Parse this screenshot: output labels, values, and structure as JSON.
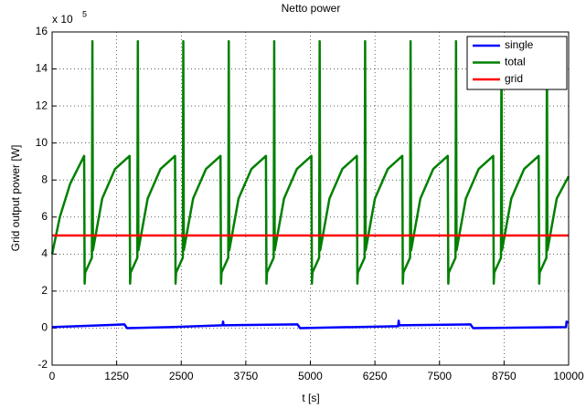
{
  "chart_data": {
    "type": "line",
    "title": "Netto power",
    "x_label": "t [s]",
    "y_label": "Grid output power [W]",
    "y_multiplier": {
      "base": "x 10",
      "exponent": "5"
    },
    "xlim": [
      0,
      10000
    ],
    "ylim": [
      -2,
      16
    ],
    "xticks": [
      0,
      1250,
      2500,
      3750,
      5000,
      6250,
      7500,
      8750,
      10000
    ],
    "yticks": [
      -2,
      0,
      2,
      4,
      6,
      8,
      10,
      12,
      14,
      16
    ],
    "grid": true,
    "legend": "upper right",
    "series": [
      {
        "name": "single",
        "color": "#0000ff",
        "x": [
          0,
          1400,
          1450,
          2300,
          3300,
          3310,
          3320,
          4750,
          4800,
          6700,
          6710,
          6720,
          8100,
          8150,
          9950,
          9960,
          10000
        ],
        "values": [
          0.05,
          0.2,
          0,
          0.05,
          0.15,
          0.35,
          0.15,
          0.2,
          0,
          0.1,
          0.4,
          0.15,
          0.2,
          0,
          0.05,
          0.35,
          0.3
        ]
      },
      {
        "name": "total",
        "color": "#008000",
        "x": [
          0,
          150,
          350,
          620,
          630,
          640,
          770,
          780,
          790,
          970,
          1220,
          1500,
          1510,
          1520,
          1650,
          1660,
          1670,
          1850,
          2100,
          2380,
          2390,
          2400,
          2530,
          2540,
          2550,
          2730,
          2980,
          3260,
          3270,
          3280,
          3410,
          3420,
          3430,
          3610,
          3860,
          4140,
          4150,
          4160,
          4290,
          4300,
          4310,
          4490,
          4740,
          5020,
          5030,
          5040,
          5170,
          5180,
          5190,
          5370,
          5620,
          5900,
          5910,
          5920,
          6050,
          6060,
          6070,
          6250,
          6500,
          6780,
          6790,
          6800,
          6930,
          6940,
          6950,
          7130,
          7380,
          7660,
          7670,
          7680,
          7810,
          7820,
          7830,
          8010,
          8260,
          8540,
          8550,
          8560,
          8690,
          8700,
          8710,
          8890,
          9140,
          9420,
          9430,
          9440,
          9570,
          9580,
          9590,
          9770,
          10000
        ],
        "values": [
          4.0,
          6.0,
          7.8,
          9.3,
          2.4,
          3.0,
          3.8,
          15.5,
          4.2,
          7.0,
          8.6,
          9.3,
          2.4,
          3.0,
          3.8,
          15.5,
          4.2,
          7.0,
          8.6,
          9.3,
          2.4,
          3.0,
          3.8,
          15.5,
          4.2,
          7.0,
          8.6,
          9.3,
          2.4,
          3.0,
          3.8,
          15.5,
          4.2,
          7.0,
          8.6,
          9.3,
          2.4,
          3.0,
          3.8,
          15.5,
          4.2,
          7.0,
          8.6,
          9.3,
          2.4,
          3.0,
          3.8,
          15.5,
          4.2,
          7.0,
          8.6,
          9.3,
          2.4,
          3.0,
          3.8,
          15.5,
          4.2,
          7.0,
          8.6,
          9.3,
          2.4,
          3.0,
          3.8,
          15.5,
          4.2,
          7.0,
          8.6,
          9.3,
          2.4,
          3.0,
          3.8,
          15.5,
          4.2,
          7.0,
          8.6,
          9.3,
          2.4,
          3.0,
          3.8,
          15.5,
          4.2,
          7.0,
          8.6,
          9.3,
          2.4,
          3.0,
          3.8,
          15.5,
          4.2,
          7.0,
          8.2
        ]
      },
      {
        "name": "grid",
        "color": "#ff0000",
        "x": [
          0,
          10000
        ],
        "values": [
          5,
          5
        ]
      }
    ]
  }
}
